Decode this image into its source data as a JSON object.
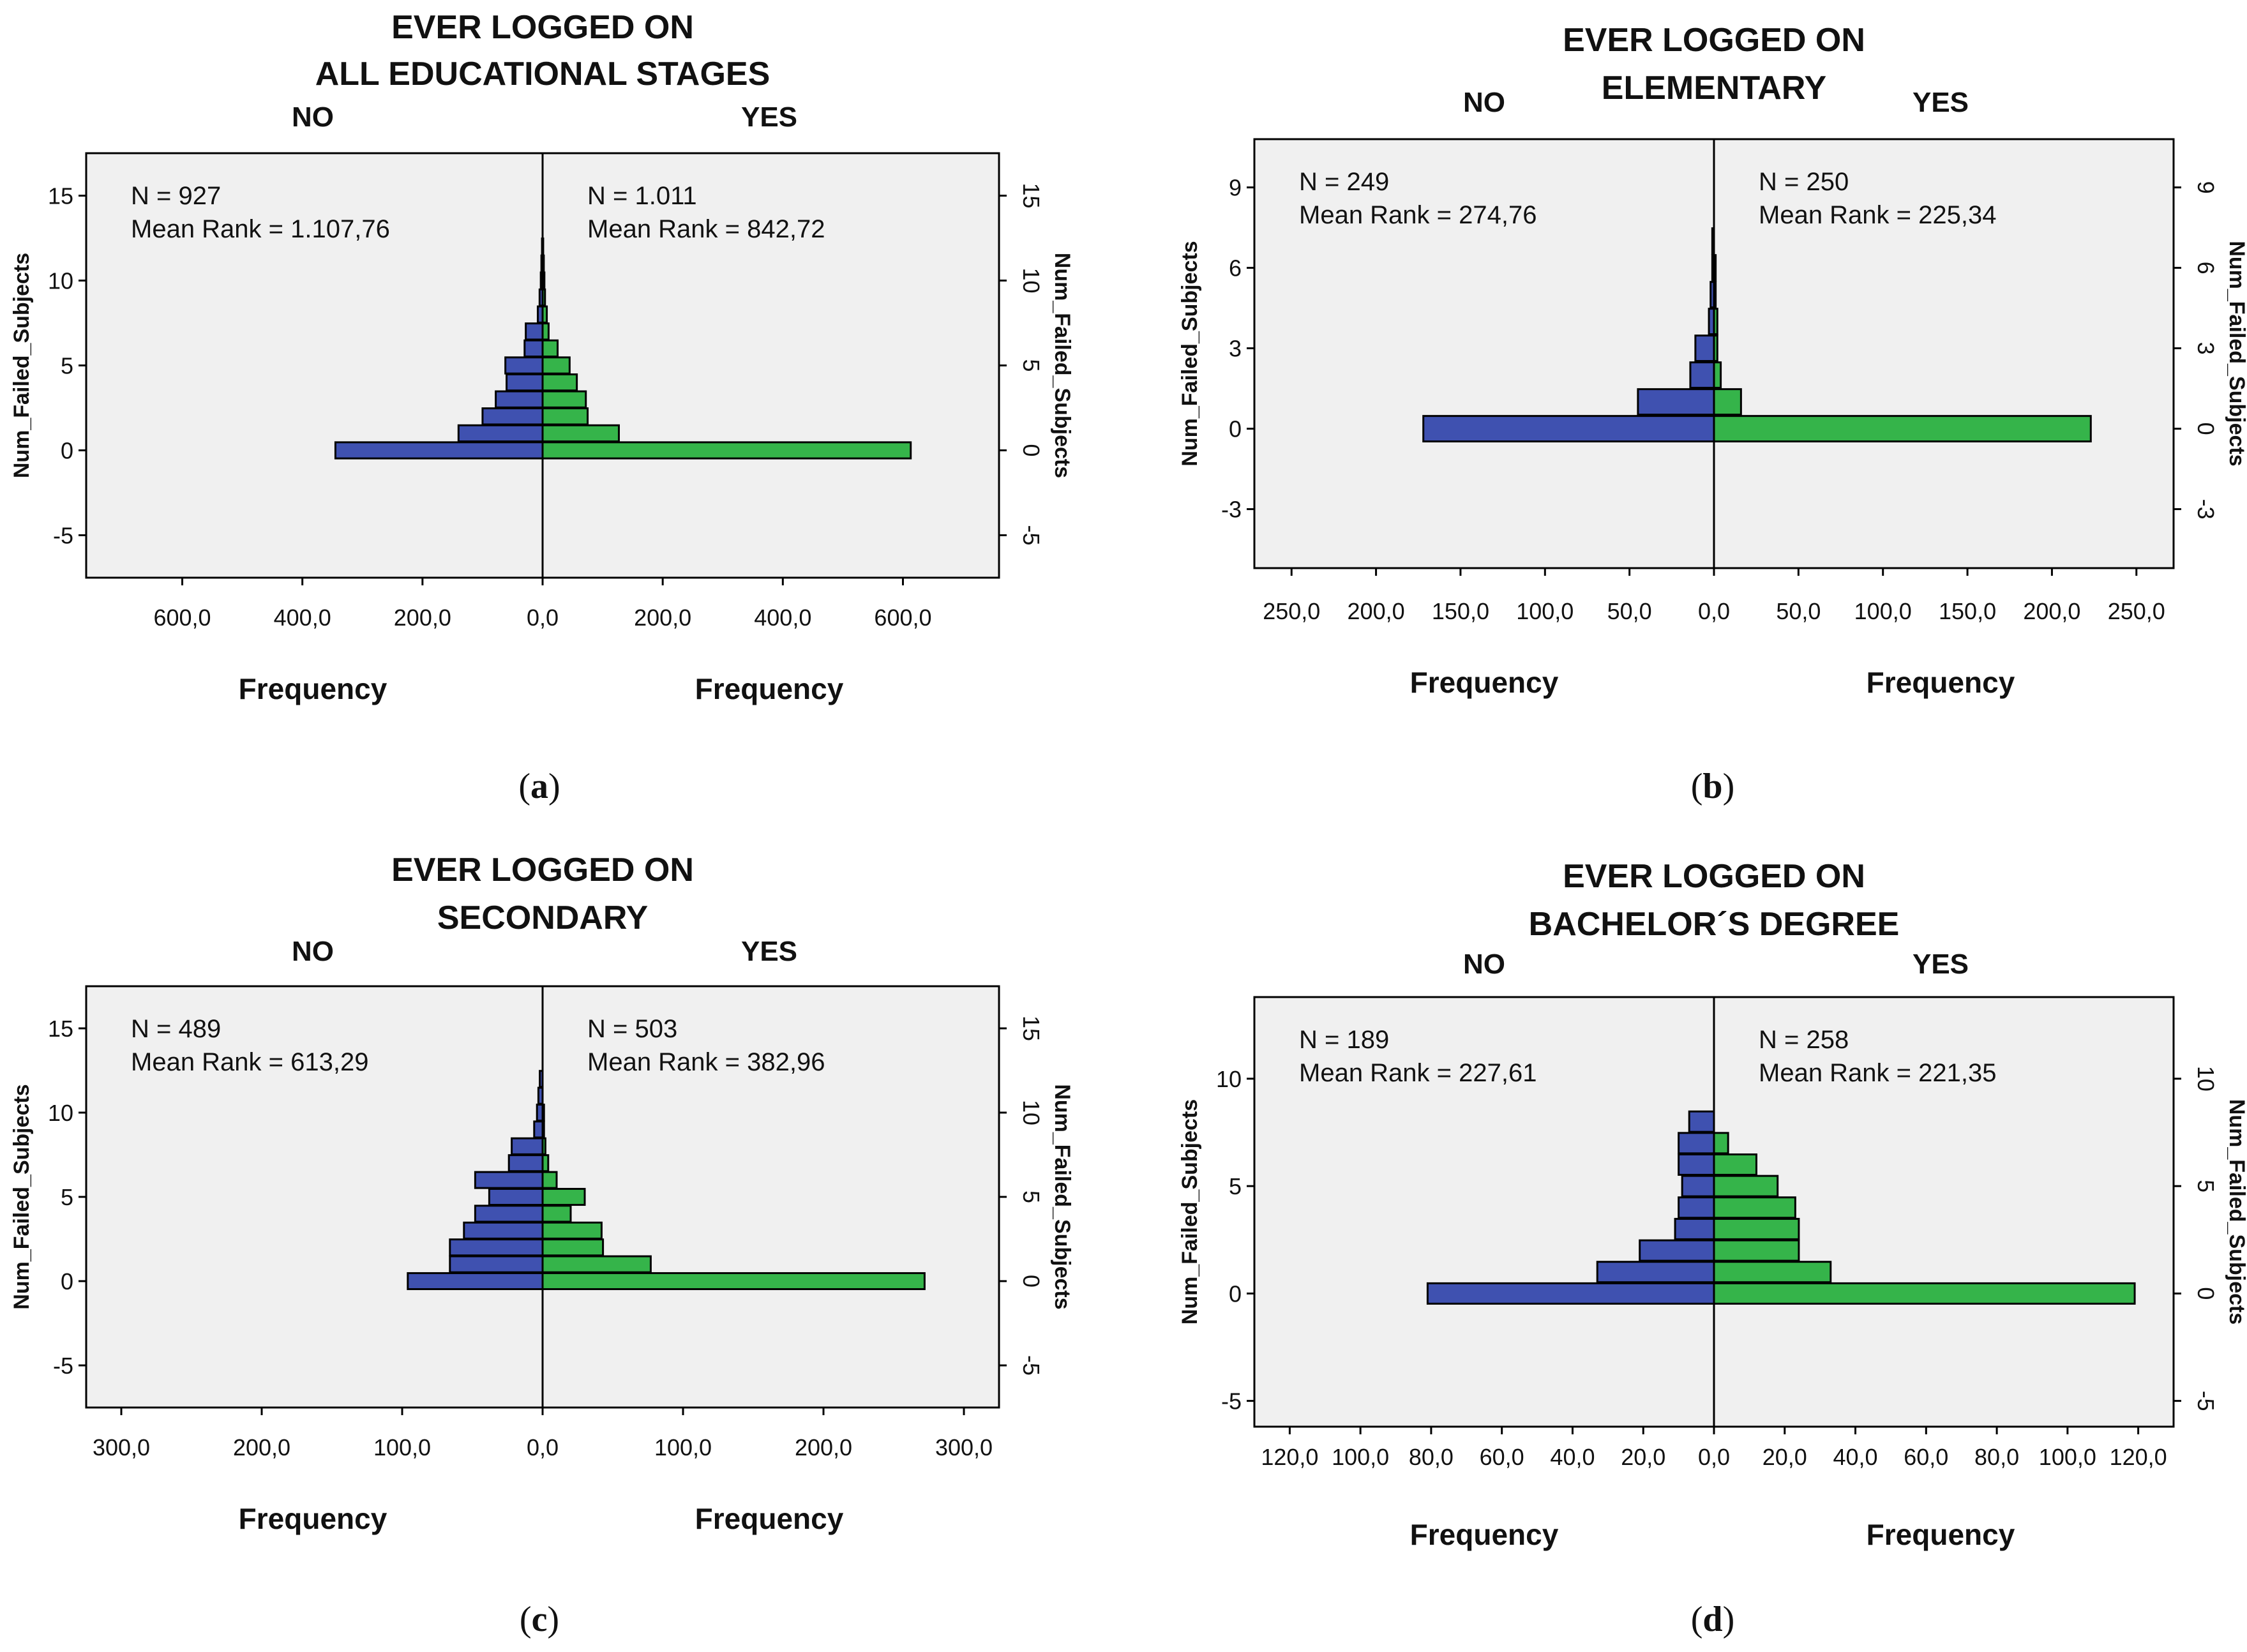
{
  "colors": {
    "no": "#3F51B0",
    "yes": "#35B44A",
    "plot_bg": "#F0F0F0",
    "edge": "#000000"
  },
  "chart_data": [
    {
      "type": "bar",
      "orientation": "horizontal-population-pyramid",
      "title_lines": [
        "EVER LOGGED ON",
        "ALL EDUCATIONAL STAGES"
      ],
      "caption_letter": "a",
      "left_group": "NO",
      "right_group": "YES",
      "left_stats": {
        "n": "N = 927",
        "mean_rank": "Mean Rank = 1.107,76"
      },
      "right_stats": {
        "n": "N = 1.011",
        "mean_rank": "Mean Rank = 842,72"
      },
      "ylabel": "Num_Failed_Subjects",
      "xlabel": "Frequency",
      "ylim": [
        -7.5,
        17.5
      ],
      "yticks": [
        15,
        10,
        5,
        0,
        -5
      ],
      "xmax": 760,
      "xticks": [
        600,
        400,
        200,
        0,
        200,
        400,
        600
      ],
      "xtick_labels": [
        "600,0",
        "400,0",
        "200,0",
        "0,0",
        "200,0",
        "400,0",
        "600,0"
      ],
      "categories": [
        0,
        1,
        2,
        3,
        4,
        5,
        6,
        7,
        8,
        9,
        10,
        11,
        12
      ],
      "series": [
        {
          "name": "NO",
          "values": [
            345,
            140,
            100,
            78,
            60,
            62,
            30,
            28,
            8,
            5,
            3,
            2,
            1
          ]
        },
        {
          "name": "YES",
          "values": [
            613,
            127,
            75,
            72,
            57,
            45,
            25,
            10,
            7,
            4,
            3,
            2,
            1
          ]
        }
      ]
    },
    {
      "type": "bar",
      "orientation": "horizontal-population-pyramid",
      "title_lines": [
        "EVER LOGGED ON",
        "ELEMENTARY"
      ],
      "caption_letter": "b",
      "left_group": "NO",
      "right_group": "YES",
      "left_stats": {
        "n": "N = 249",
        "mean_rank": "Mean Rank = 274,76"
      },
      "right_stats": {
        "n": "N = 250",
        "mean_rank": "Mean Rank = 225,34"
      },
      "ylabel": "Num_Failed_Subjects",
      "xlabel": "Frequency",
      "ylim": [
        -5.2,
        10.8
      ],
      "yticks": [
        9,
        6,
        3,
        0,
        -3
      ],
      "xmax": 272,
      "xticks": [
        250,
        200,
        150,
        100,
        50,
        0,
        50,
        100,
        150,
        200,
        250
      ],
      "xtick_labels": [
        "250,0",
        "200,0",
        "150,0",
        "100,0",
        "50,0",
        "0,0",
        "50,0",
        "100,0",
        "150,0",
        "200,0",
        "250,0"
      ],
      "categories": [
        0,
        1,
        2,
        3,
        4,
        5,
        6,
        7
      ],
      "series": [
        {
          "name": "NO",
          "values": [
            172,
            45,
            14,
            11,
            3,
            2,
            1,
            1
          ]
        },
        {
          "name": "YES",
          "values": [
            223,
            16,
            4,
            2,
            2,
            1,
            1,
            0
          ]
        }
      ]
    },
    {
      "type": "bar",
      "orientation": "horizontal-population-pyramid",
      "title_lines": [
        "EVER LOGGED ON",
        "SECONDARY"
      ],
      "caption_letter": "c",
      "left_group": "NO",
      "right_group": "YES",
      "left_stats": {
        "n": "N = 489",
        "mean_rank": "Mean Rank = 613,29"
      },
      "right_stats": {
        "n": "N = 503",
        "mean_rank": "Mean Rank = 382,96"
      },
      "ylabel": "Num_Failed_Subjects",
      "xlabel": "Frequency",
      "ylim": [
        -7.5,
        17.5
      ],
      "yticks": [
        15,
        10,
        5,
        0,
        -5
      ],
      "xmax": 325,
      "xticks": [
        300,
        200,
        100,
        0,
        100,
        200,
        300
      ],
      "xtick_labels": [
        "300,0",
        "200,0",
        "100,0",
        "0,0",
        "100,0",
        "200,0",
        "300,0"
      ],
      "categories": [
        0,
        1,
        2,
        3,
        4,
        5,
        6,
        7,
        8,
        9,
        10,
        11,
        12
      ],
      "series": [
        {
          "name": "NO",
          "values": [
            96,
            66,
            66,
            56,
            48,
            38,
            48,
            24,
            22,
            6,
            4,
            3,
            2
          ]
        },
        {
          "name": "YES",
          "values": [
            272,
            77,
            43,
            42,
            20,
            30,
            10,
            4,
            2,
            1,
            1,
            0,
            0
          ]
        }
      ]
    },
    {
      "type": "bar",
      "orientation": "horizontal-population-pyramid",
      "title_lines": [
        "EVER LOGGED ON",
        "BACHELOR´S DEGREE"
      ],
      "caption_letter": "d",
      "left_group": "NO",
      "right_group": "YES",
      "left_stats": {
        "n": "N = 189",
        "mean_rank": "Mean Rank = 227,61"
      },
      "right_stats": {
        "n": "N = 258",
        "mean_rank": "Mean Rank = 221,35"
      },
      "ylabel": "Num_Failed_Subjects",
      "xlabel": "Frequency",
      "ylim": [
        -6.2,
        13.8
      ],
      "yticks": [
        10,
        5,
        0,
        -5
      ],
      "xmax": 130,
      "xticks": [
        120,
        100,
        80,
        60,
        40,
        20,
        0,
        20,
        40,
        60,
        80,
        100,
        120
      ],
      "xtick_labels": [
        "120,0",
        "100,0",
        "80,0",
        "60,0",
        "40,0",
        "20,0",
        "0,0",
        "20,0",
        "40,0",
        "60,0",
        "80,0",
        "100,0",
        "120,0"
      ],
      "categories": [
        0,
        1,
        2,
        3,
        4,
        5,
        6,
        7,
        8
      ],
      "series": [
        {
          "name": "NO",
          "values": [
            81,
            33,
            21,
            11,
            10,
            9,
            10,
            10,
            7
          ]
        },
        {
          "name": "YES",
          "values": [
            119,
            33,
            24,
            24,
            23,
            18,
            12,
            4,
            0
          ]
        }
      ]
    }
  ]
}
